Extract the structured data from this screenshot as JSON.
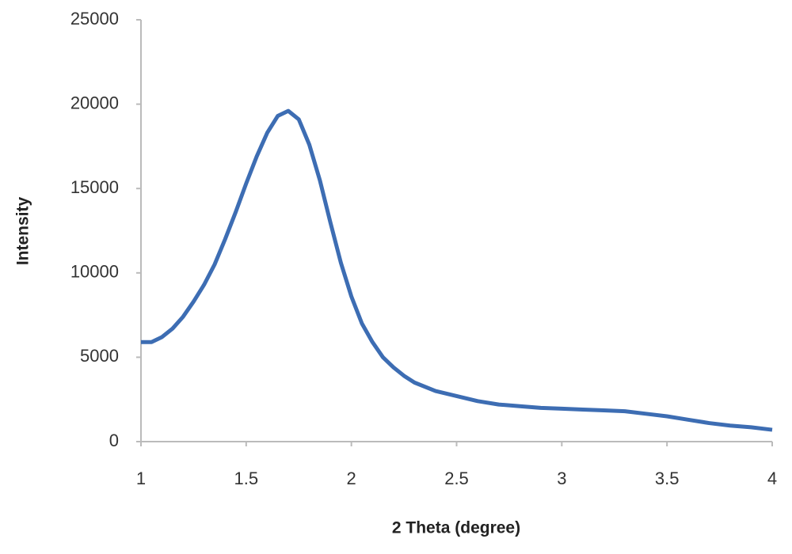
{
  "chart_data": {
    "type": "line",
    "x_label": "2 Theta (degree)",
    "y_label": "Intensity",
    "xlim": [
      1,
      4
    ],
    "xticks": [
      1,
      1.5,
      2,
      2.5,
      3,
      3.5,
      4
    ],
    "ylim": [
      0,
      25000
    ],
    "yticks": [
      0,
      5000,
      10000,
      15000,
      20000,
      25000
    ],
    "grid": false,
    "series": [
      {
        "color": "#3d6db3",
        "x": [
          1,
          1.05,
          1.1,
          1.15,
          1.2,
          1.25,
          1.3,
          1.35,
          1.4,
          1.45,
          1.5,
          1.55,
          1.6,
          1.65,
          1.7,
          1.75,
          1.8,
          1.85,
          1.9,
          1.95,
          2,
          2.05,
          2.1,
          2.15,
          2.2,
          2.25,
          2.3,
          2.4,
          2.5,
          2.6,
          2.7,
          2.8,
          2.9,
          3,
          3.1,
          3.2,
          3.3,
          3.4,
          3.5,
          3.6,
          3.7,
          3.8,
          3.9,
          4
        ],
        "values": [
          5900,
          5900,
          6200,
          6700,
          7400,
          8300,
          9300,
          10500,
          12000,
          13600,
          15300,
          16900,
          18300,
          19300,
          19600,
          19100,
          17600,
          15500,
          13000,
          10600,
          8600,
          7000,
          5900,
          5000,
          4400,
          3900,
          3500,
          3000,
          2700,
          2400,
          2200,
          2100,
          2000,
          1950,
          1900,
          1850,
          1800,
          1650,
          1500,
          1300,
          1100,
          950,
          850,
          700
        ]
      }
    ]
  }
}
